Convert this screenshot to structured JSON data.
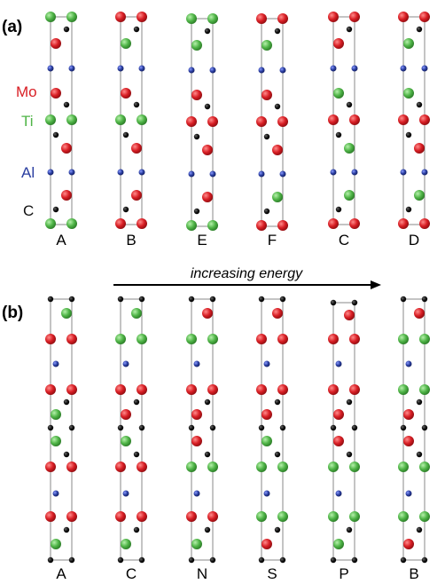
{
  "colors": {
    "Mo": "#d81e24",
    "Ti": "#4fb447",
    "Al": "#2a3ea0",
    "C": "#111111"
  },
  "panels": [
    {
      "label": "(a)",
      "columns": [
        "A",
        "B",
        "E",
        "F",
        "C",
        "D"
      ],
      "legend": [
        {
          "symbol": "Mo",
          "color_key": "Mo"
        },
        {
          "symbol": "Ti",
          "color_key": "Ti"
        },
        {
          "symbol": "Al",
          "color_key": "Al"
        },
        {
          "symbol": "C",
          "color_key": "C"
        }
      ]
    },
    {
      "label": "(b)",
      "columns": [
        "A",
        "C",
        "N",
        "S",
        "P",
        "B"
      ]
    }
  ],
  "arrow": {
    "label": "increasing energy"
  }
}
